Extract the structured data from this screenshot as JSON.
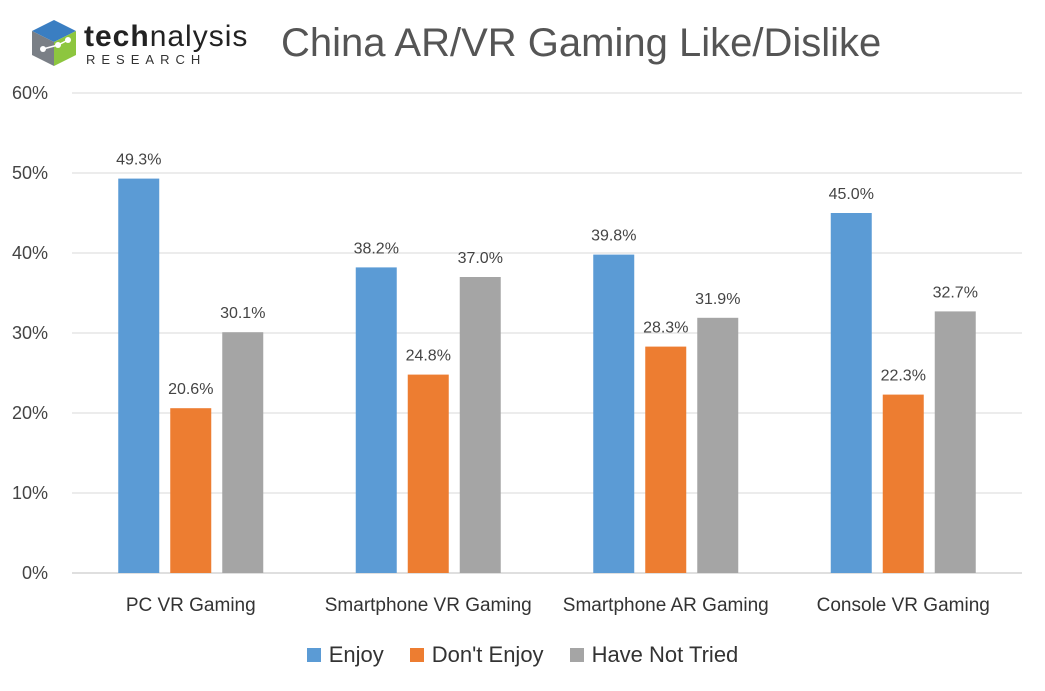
{
  "header": {
    "logo_word_bold": "tech",
    "logo_word_light": "nalysis",
    "logo_sub": "RESEARCH",
    "logo_icon": "cube-logo-icon"
  },
  "chart_data": {
    "type": "bar",
    "title": "China AR/VR Gaming Like/Dislike",
    "xlabel": "",
    "ylabel": "",
    "categories": [
      "PC VR Gaming",
      "Smartphone VR Gaming",
      "Smartphone AR Gaming",
      "Console VR Gaming"
    ],
    "series": [
      {
        "name": "Enjoy",
        "color": "#5B9BD5",
        "values": [
          49.3,
          38.2,
          39.8,
          45.0
        ],
        "labels": [
          "49.3%",
          "38.2%",
          "39.8%",
          "45.0%"
        ]
      },
      {
        "name": "Don't Enjoy",
        "color": "#ED7D31",
        "values": [
          20.6,
          24.8,
          28.3,
          22.3
        ],
        "labels": [
          "20.6%",
          "24.8%",
          "28.3%",
          "22.3%"
        ]
      },
      {
        "name": "Have Not Tried",
        "color": "#A5A5A5",
        "values": [
          30.1,
          37.0,
          31.9,
          32.7
        ],
        "labels": [
          "30.1%",
          "37.0%",
          "31.9%",
          "32.7%"
        ]
      }
    ],
    "ylim": [
      0,
      60
    ],
    "yticks": [
      "0%",
      "10%",
      "20%",
      "30%",
      "40%",
      "50%",
      "60%"
    ],
    "grid": true,
    "legend_position": "bottom"
  }
}
